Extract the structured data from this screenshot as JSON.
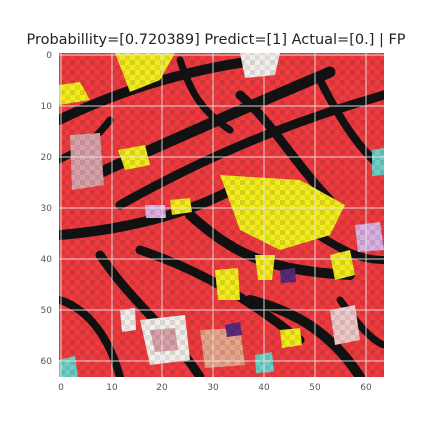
{
  "figure": {
    "title": "Probabillity=[0.720389] Predict=[1] Actual=[0.] | FP"
  },
  "axes": {
    "x_ticks": [
      "0",
      "10",
      "20",
      "30",
      "40",
      "50",
      "60"
    ],
    "y_ticks": [
      "0",
      "10",
      "20",
      "30",
      "40",
      "50",
      "60"
    ],
    "x_range": [
      0,
      63
    ],
    "y_range": [
      0,
      63
    ],
    "grid": true
  },
  "image": {
    "description": "",
    "palette": {
      "red": "#ef3b3f",
      "yellow": "#f2ec1c",
      "black": "#121212",
      "pink": "#d9a0a8",
      "white": "#f2eeea",
      "teal": "#6fcfc6",
      "purple": "#5a2a7a"
    },
    "grid_color": "#e8e8e8"
  }
}
